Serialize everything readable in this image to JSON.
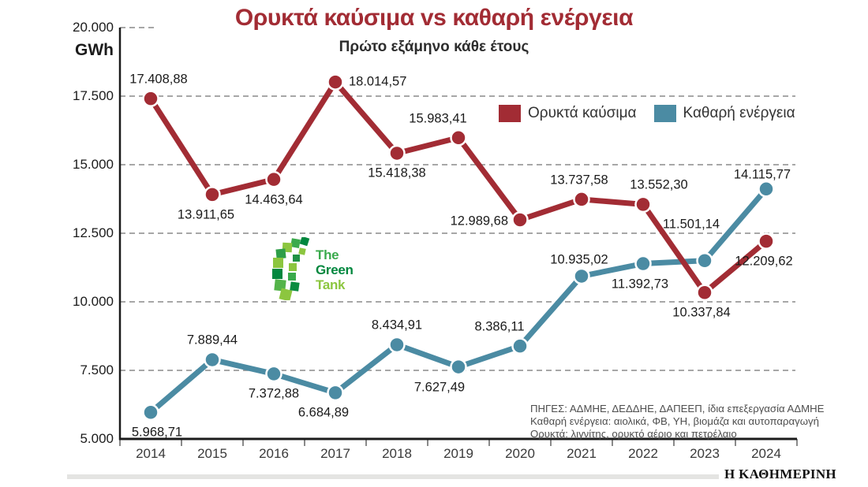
{
  "title": "Ορυκτά καύσιμα vs καθαρή ενέργεια",
  "subtitle": "Πρώτο εξάμηνο κάθε έτους",
  "colors": {
    "title_red": "#A22C34",
    "fossil_red": "#A22C34",
    "clean_blue": "#4B8BA3",
    "logo_green_dark": "#00873E",
    "logo_green_mid": "#3AAA4C",
    "logo_green_light": "#8CC63F"
  },
  "y_axis": {
    "unit": "GWh",
    "tick_labels": [
      "20.000",
      "17.500",
      "15.000",
      "12.500",
      "10.000",
      "7.500",
      "5.000"
    ],
    "tick_values": [
      20000,
      17500,
      15000,
      12500,
      10000,
      7500,
      5000
    ]
  },
  "legend": {
    "items": [
      {
        "label": "Ορυκτά καύσιμα",
        "color": "#A22C34"
      },
      {
        "label": "Καθαρή ενέργεια",
        "color": "#4B8BA3"
      }
    ]
  },
  "chart_data": {
    "type": "line",
    "title": "Ορυκτά καύσιμα vs καθαρή ενέργεια",
    "subtitle": "Πρώτο εξάμηνο κάθε έτους",
    "x": [
      2014,
      2015,
      2016,
      2017,
      2018,
      2019,
      2020,
      2021,
      2022,
      2023,
      2024
    ],
    "xlabel": "",
    "ylabel": "GWh",
    "ylim": [
      5000,
      20000
    ],
    "grid": "horizontal-dashed",
    "legend_position": "top-right",
    "series": [
      {
        "name": "Ορυκτά καύσιμα",
        "color": "#A22C34",
        "values": [
          17408.88,
          13911.65,
          14463.64,
          18014.57,
          15418.38,
          15983.41,
          12989.68,
          13737.58,
          13552.3,
          10337.84,
          12209.62
        ],
        "labels": [
          "17.408,88",
          "13.911,65",
          "14.463,64",
          "18.014,57",
          "15.418,38",
          "15.983,41",
          "12.989,68",
          "13.737,58",
          "13.552,30",
          "10.337,84",
          "12.209,62"
        ],
        "label_pos": [
          "above",
          "below",
          "below",
          "right",
          "below",
          "above",
          "left",
          "above",
          "above",
          "below",
          "below"
        ]
      },
      {
        "name": "Καθαρή ενέργεια",
        "color": "#4B8BA3",
        "values": [
          5968.71,
          7889.44,
          7372.88,
          6684.89,
          8434.91,
          7627.49,
          8386.11,
          10935.02,
          11392.73,
          11501.14,
          14115.77
        ],
        "labels": [
          "5.968,71",
          "7.889,44",
          "7.372,88",
          "6.684,89",
          "8.434,91",
          "7.627,49",
          "8.386,11",
          "10.935,02",
          "11.392,73",
          "11.501,14",
          "14.115,77"
        ],
        "label_pos": [
          "below",
          "above",
          "below",
          "below",
          "above",
          "below",
          "above",
          "above",
          "below",
          "above",
          "above"
        ]
      }
    ]
  },
  "logo": {
    "text_lines": [
      "The",
      "Green",
      "Tank"
    ]
  },
  "source_notes": [
    "ΠΗΓΕΣ: ΑΔΜΗΕ, ΔΕΔΔΗΕ, ΔΑΠΕΕΠ, ίδια επεξεργασία ΑΔΜΗΕ",
    "Καθαρή ενέργεια: αιολικά, ΦΒ, ΥΗ, βιομάζα και αυτοπαραγωγή",
    "Ορυκτά: λιγνίτης, ορυκτό αέριο και πετρέλαιο"
  ],
  "footer": {
    "brand": "Η ΚΑΘΗΜΕΡΙΝΗ"
  }
}
